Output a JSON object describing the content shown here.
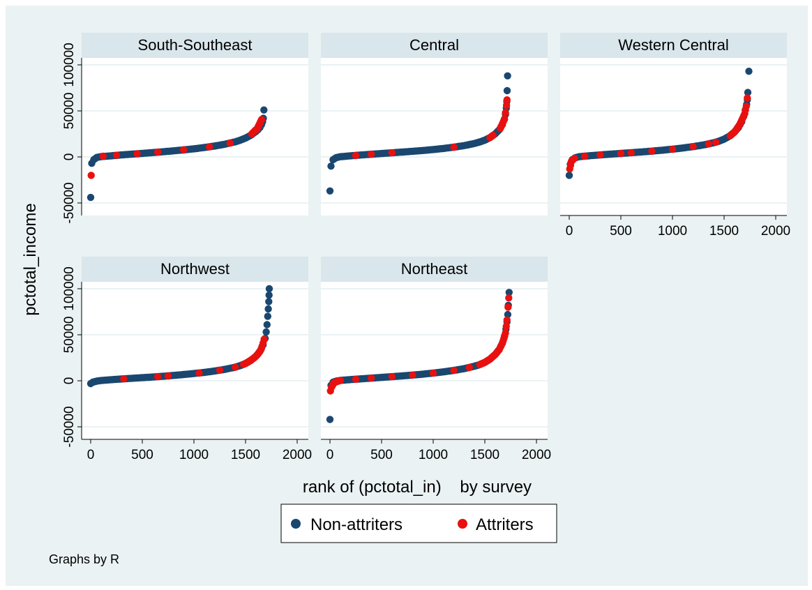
{
  "chart_data": {
    "type": "scatter",
    "layout": "small-multiples",
    "ylabel": "pctotal_income",
    "xlabel": "rank of (pctotal_in)    by survey",
    "note": "Graphs by R",
    "xlim": [
      0,
      2000
    ],
    "ylim": [
      -50000,
      100000
    ],
    "x_ticks": [
      "0",
      "500",
      "1000",
      "1500",
      "2000"
    ],
    "y_ticks": [
      "-50000",
      "0",
      "50000",
      "100000"
    ],
    "grid": "horizontal",
    "legend": {
      "placement": "bottom-center",
      "entries": [
        {
          "label": "Non-attriters",
          "color": "#1a476f"
        },
        {
          "label": "Attriters",
          "color": "#e8110f"
        }
      ]
    },
    "panels": [
      {
        "title": "South-Southeast",
        "n": 1680,
        "non_attriters": [
          [
            0,
            -44000
          ],
          [
            10,
            -7000
          ],
          [
            30,
            -3000
          ],
          [
            60,
            -500
          ],
          [
            100,
            300
          ],
          [
            200,
            1200
          ],
          [
            300,
            2200
          ],
          [
            400,
            3000
          ],
          [
            500,
            3800
          ],
          [
            600,
            4700
          ],
          [
            700,
            5600
          ],
          [
            800,
            6600
          ],
          [
            900,
            7600
          ],
          [
            1000,
            8800
          ],
          [
            1100,
            10200
          ],
          [
            1200,
            11800
          ],
          [
            1300,
            13800
          ],
          [
            1400,
            16400
          ],
          [
            1450,
            18200
          ],
          [
            1500,
            20500
          ],
          [
            1550,
            23500
          ],
          [
            1600,
            27500
          ],
          [
            1620,
            29500
          ],
          [
            1640,
            32000
          ],
          [
            1655,
            35000
          ],
          [
            1665,
            38000
          ],
          [
            1672,
            42000
          ],
          [
            1678,
            51000
          ]
        ],
        "attriters": [
          [
            5,
            -20000
          ],
          [
            120,
            800
          ],
          [
            250,
            1800
          ],
          [
            450,
            3400
          ],
          [
            650,
            5200
          ],
          [
            900,
            7700
          ],
          [
            1150,
            11000
          ],
          [
            1350,
            15000
          ],
          [
            1560,
            25000
          ],
          [
            1595,
            29000
          ],
          [
            1610,
            30000
          ],
          [
            1655,
            40500
          ]
        ]
      },
      {
        "title": "Central",
        "n": 1720,
        "non_attriters": [
          [
            0,
            -37000
          ],
          [
            10,
            -10000
          ],
          [
            30,
            -3000
          ],
          [
            60,
            -800
          ],
          [
            100,
            200
          ],
          [
            200,
            1200
          ],
          [
            300,
            2100
          ],
          [
            400,
            2900
          ],
          [
            500,
            3700
          ],
          [
            600,
            4500
          ],
          [
            700,
            5300
          ],
          [
            800,
            6100
          ],
          [
            900,
            7000
          ],
          [
            1000,
            8000
          ],
          [
            1100,
            9200
          ],
          [
            1200,
            10600
          ],
          [
            1300,
            12300
          ],
          [
            1400,
            14600
          ],
          [
            1450,
            16200
          ],
          [
            1500,
            18200
          ],
          [
            1550,
            21000
          ],
          [
            1600,
            25000
          ],
          [
            1640,
            29500
          ],
          [
            1670,
            35000
          ],
          [
            1690,
            41000
          ],
          [
            1700,
            46000
          ],
          [
            1708,
            53000
          ],
          [
            1713,
            60000
          ],
          [
            1716,
            72000
          ],
          [
            1720,
            88000
          ]
        ],
        "attriters": [
          [
            250,
            1600
          ],
          [
            400,
            2900
          ],
          [
            600,
            4500
          ],
          [
            1200,
            10600
          ],
          [
            1550,
            21000
          ],
          [
            1580,
            23500
          ],
          [
            1650,
            31000
          ],
          [
            1690,
            41000
          ],
          [
            1700,
            48000
          ],
          [
            1710,
            56000
          ],
          [
            1715,
            62000
          ]
        ]
      },
      {
        "title": "Western Central",
        "n": 1740,
        "non_attriters": [
          [
            0,
            -20000
          ],
          [
            10,
            -8000
          ],
          [
            30,
            -3000
          ],
          [
            60,
            -800
          ],
          [
            100,
            300
          ],
          [
            200,
            1300
          ],
          [
            300,
            2200
          ],
          [
            400,
            3000
          ],
          [
            500,
            3800
          ],
          [
            600,
            4600
          ],
          [
            700,
            5400
          ],
          [
            800,
            6300
          ],
          [
            900,
            7300
          ],
          [
            1000,
            8400
          ],
          [
            1100,
            9700
          ],
          [
            1200,
            11200
          ],
          [
            1300,
            13000
          ],
          [
            1400,
            15400
          ],
          [
            1450,
            17100
          ],
          [
            1500,
            19300
          ],
          [
            1550,
            22500
          ],
          [
            1600,
            27000
          ],
          [
            1640,
            32000
          ],
          [
            1670,
            38000
          ],
          [
            1690,
            44000
          ],
          [
            1705,
            51000
          ],
          [
            1718,
            57000
          ],
          [
            1725,
            62000
          ],
          [
            1730,
            70000
          ],
          [
            1740,
            93000
          ]
        ],
        "attriters": [
          [
            5,
            -13000
          ],
          [
            20,
            -5000
          ],
          [
            50,
            -1500
          ],
          [
            150,
            800
          ],
          [
            300,
            2200
          ],
          [
            500,
            3800
          ],
          [
            600,
            4600
          ],
          [
            800,
            6300
          ],
          [
            1000,
            8400
          ],
          [
            1200,
            11200
          ],
          [
            1350,
            14200
          ],
          [
            1420,
            16000
          ],
          [
            1560,
            23000
          ],
          [
            1600,
            27000
          ],
          [
            1620,
            30000
          ],
          [
            1650,
            35000
          ],
          [
            1680,
            42000
          ],
          [
            1700,
            47000
          ],
          [
            1715,
            55000
          ],
          [
            1725,
            64000
          ]
        ]
      },
      {
        "title": "Northwest",
        "n": 1730,
        "non_attriters": [
          [
            0,
            -3000
          ],
          [
            20,
            -1500
          ],
          [
            60,
            -300
          ],
          [
            100,
            300
          ],
          [
            200,
            1200
          ],
          [
            300,
            2000
          ],
          [
            400,
            2700
          ],
          [
            500,
            3400
          ],
          [
            600,
            4100
          ],
          [
            700,
            4900
          ],
          [
            800,
            5800
          ],
          [
            900,
            6800
          ],
          [
            1000,
            7900
          ],
          [
            1100,
            9100
          ],
          [
            1200,
            10600
          ],
          [
            1300,
            12400
          ],
          [
            1400,
            14800
          ],
          [
            1450,
            16500
          ],
          [
            1500,
            18800
          ],
          [
            1550,
            22000
          ],
          [
            1600,
            26500
          ],
          [
            1640,
            32000
          ],
          [
            1670,
            39000
          ],
          [
            1690,
            46000
          ],
          [
            1700,
            53000
          ],
          [
            1708,
            61000
          ],
          [
            1715,
            70000
          ],
          [
            1720,
            78000
          ],
          [
            1725,
            86000
          ],
          [
            1728,
            93000
          ],
          [
            1730,
            100000
          ]
        ],
        "attriters": [
          [
            320,
            2100
          ],
          [
            650,
            4500
          ],
          [
            750,
            5300
          ],
          [
            1050,
            8500
          ],
          [
            1250,
            11500
          ],
          [
            1400,
            14800
          ],
          [
            1480,
            17800
          ],
          [
            1520,
            20000
          ],
          [
            1560,
            23000
          ],
          [
            1590,
            25500
          ],
          [
            1620,
            29000
          ],
          [
            1650,
            34000
          ],
          [
            1670,
            41000
          ],
          [
            1680,
            45000
          ]
        ]
      },
      {
        "title": "Northeast",
        "n": 1735,
        "non_attriters": [
          [
            0,
            -42000
          ],
          [
            10,
            -5000
          ],
          [
            30,
            -1500
          ],
          [
            60,
            -300
          ],
          [
            100,
            400
          ],
          [
            200,
            1300
          ],
          [
            300,
            2100
          ],
          [
            400,
            2900
          ],
          [
            500,
            3700
          ],
          [
            600,
            4500
          ],
          [
            700,
            5300
          ],
          [
            800,
            6200
          ],
          [
            900,
            7200
          ],
          [
            1000,
            8400
          ],
          [
            1100,
            9700
          ],
          [
            1200,
            11300
          ],
          [
            1300,
            13200
          ],
          [
            1400,
            15800
          ],
          [
            1450,
            17600
          ],
          [
            1500,
            20000
          ],
          [
            1550,
            23500
          ],
          [
            1600,
            28500
          ],
          [
            1640,
            34000
          ],
          [
            1670,
            41000
          ],
          [
            1690,
            48000
          ],
          [
            1705,
            56000
          ],
          [
            1715,
            64000
          ],
          [
            1722,
            72000
          ],
          [
            1728,
            82000
          ],
          [
            1735,
            96000
          ]
        ],
        "attriters": [
          [
            5,
            -11000
          ],
          [
            15,
            -7000
          ],
          [
            40,
            -2000
          ],
          [
            100,
            400
          ],
          [
            250,
            1700
          ],
          [
            400,
            2900
          ],
          [
            600,
            4500
          ],
          [
            800,
            6200
          ],
          [
            1000,
            8400
          ],
          [
            1200,
            11300
          ],
          [
            1350,
            14500
          ],
          [
            1450,
            17600
          ],
          [
            1500,
            20000
          ],
          [
            1550,
            23500
          ],
          [
            1600,
            28500
          ],
          [
            1640,
            34000
          ],
          [
            1670,
            41000
          ],
          [
            1685,
            46000
          ],
          [
            1700,
            52000
          ],
          [
            1715,
            66000
          ],
          [
            1725,
            80000
          ],
          [
            1732,
            90000
          ]
        ]
      }
    ]
  }
}
